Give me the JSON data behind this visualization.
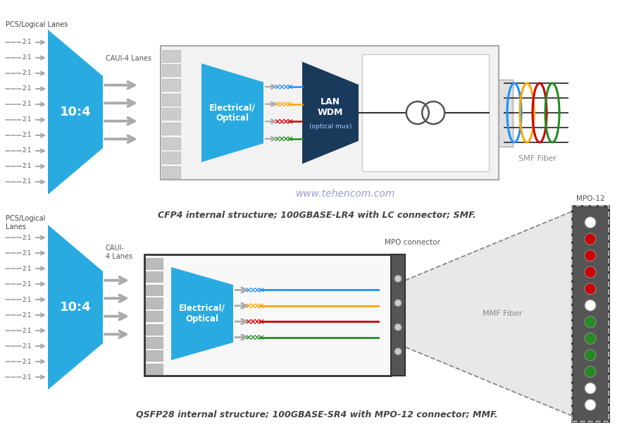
{
  "fig_width": 9.0,
  "fig_height": 6.2,
  "dpi": 100,
  "bg_color": "#ffffff",
  "cyan": "#29ABE2",
  "dark_blue": "#1A3A5C",
  "gray_arrow": "#AAAAAA",
  "gray_dark": "#888888",
  "light_gray_box": "#F0F0F0",
  "rib_color": "#C8C8C8",
  "cfp4_caption": "CFP4 internal structure; 100GBASE-LR4 with LC connector; SMF.",
  "qsfp_caption": "QSFP28 internal structure; 100GBASE-SR4 with MPO-12 connector; MMF.",
  "watermark": "www.tehencom.com",
  "sig_colors": [
    "#1E90FF",
    "#FFA500",
    "#CC0000",
    "#228B22"
  ],
  "num_lanes": 10
}
